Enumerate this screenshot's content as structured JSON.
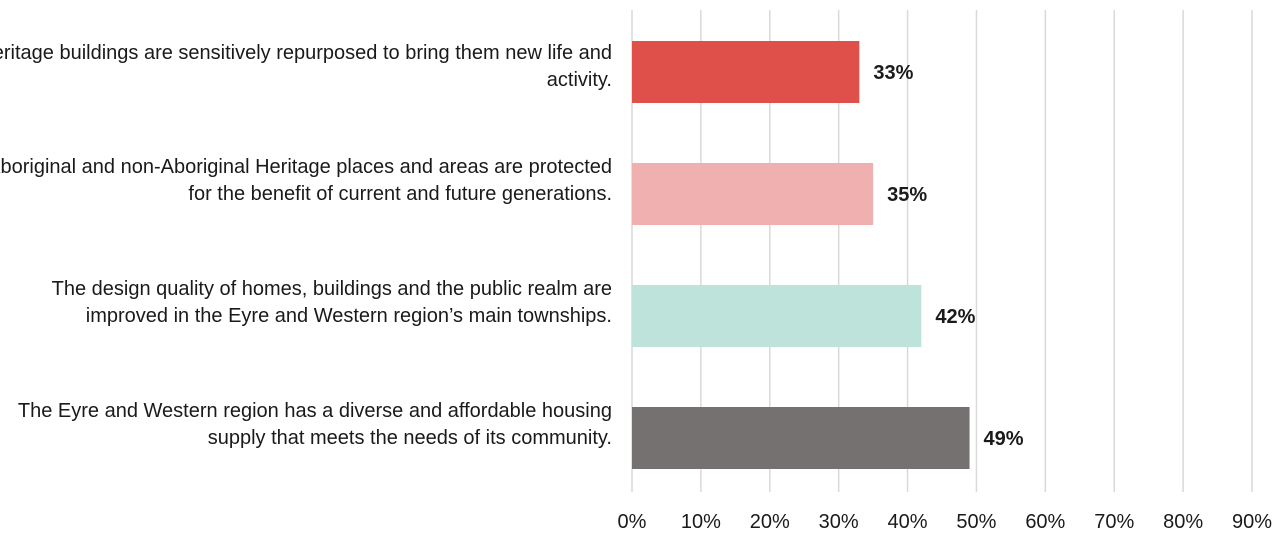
{
  "chart_data": {
    "type": "bar",
    "orientation": "horizontal",
    "categories": [
      "Heritage buildings are sensitively repurposed to bring them new life and activity.",
      "Aboriginal and non-Aboriginal Heritage places and areas are protected for the benefit of current and future generations.",
      "The design quality of homes, buildings and the public realm are improved in the Eyre and Western region’s main townships.",
      "The Eyre and Western region has a diverse and affordable housing supply that meets the needs of its community."
    ],
    "values": [
      33,
      35,
      42,
      49
    ],
    "data_labels": [
      "33%",
      "35%",
      "42%",
      "49%"
    ],
    "bar_colors": [
      "#e0504a",
      "#f0b0b0",
      "#bde3db",
      "#767171"
    ],
    "xlim": [
      0,
      90
    ],
    "x_ticks": [
      0,
      10,
      20,
      30,
      40,
      50,
      60,
      70,
      80,
      90
    ],
    "x_tick_labels": [
      "0%",
      "10%",
      "20%",
      "30%",
      "40%",
      "50%",
      "60%",
      "70%",
      "80%",
      "90%"
    ],
    "grid": true,
    "legend": "none"
  }
}
